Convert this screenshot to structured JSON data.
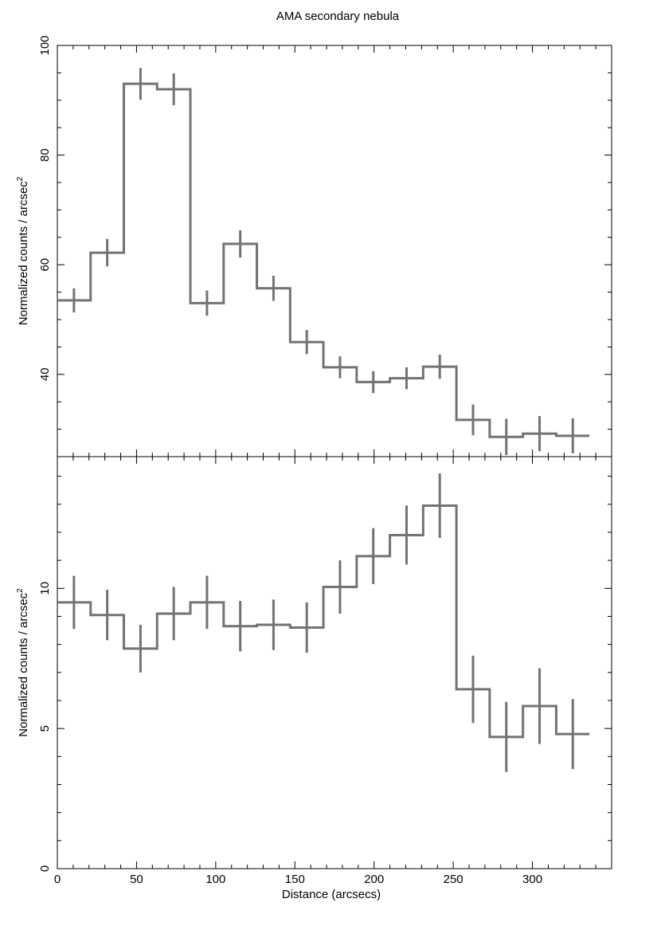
{
  "figure_title": "AMA secondary nebula",
  "chart_data": [
    {
      "type": "line",
      "style": "step-histogram-with-error-bars",
      "title": "AMA secondary nebula",
      "xlabel": "Distance (arcsecs)",
      "ylabel": "Normalized counts / arcsec",
      "ylabel_superscript": "2",
      "xlim": [
        0,
        350
      ],
      "ylim": [
        25,
        100
      ],
      "x_ticks": [],
      "y_ticks": [
        40,
        60,
        80,
        100
      ],
      "x_minor_step": 10,
      "y_minor_step": 5,
      "color": "#737373",
      "bin_edges": [
        0,
        21,
        42,
        63,
        84,
        105,
        126,
        147,
        168,
        189,
        210,
        231,
        252,
        273,
        294,
        315,
        336
      ],
      "x": [
        10.5,
        31.5,
        52.5,
        73.5,
        94.5,
        115.5,
        136.5,
        157.5,
        178.5,
        199.5,
        220.5,
        241.5,
        262.5,
        283.5,
        304.5,
        325.5
      ],
      "values": [
        53.5,
        62.2,
        93.0,
        92.0,
        53.0,
        63.8,
        55.7,
        45.9,
        41.3,
        38.6,
        39.3,
        41.4,
        31.7,
        28.6,
        29.2,
        28.8
      ],
      "errors": [
        2.2,
        2.5,
        2.9,
        2.9,
        2.3,
        2.5,
        2.3,
        2.2,
        2.0,
        2.0,
        2.0,
        2.2,
        2.8,
        3.3,
        3.2,
        3.2
      ]
    },
    {
      "type": "line",
      "style": "step-histogram-with-error-bars",
      "xlabel": "Distance (arcsecs)",
      "ylabel": "Normalized counts / arcsec",
      "ylabel_superscript": "2",
      "xlim": [
        0,
        350
      ],
      "ylim": [
        0,
        14.7
      ],
      "x_ticks": [
        0,
        50,
        100,
        150,
        200,
        250,
        300
      ],
      "y_ticks": [
        0,
        5,
        10
      ],
      "x_minor_step": 10,
      "y_minor_step": 1,
      "color": "#737373",
      "bin_edges": [
        0,
        21,
        42,
        63,
        84,
        105,
        126,
        147,
        168,
        189,
        210,
        231,
        252,
        273,
        294,
        315,
        336
      ],
      "x": [
        10.5,
        31.5,
        52.5,
        73.5,
        94.5,
        115.5,
        136.5,
        157.5,
        178.5,
        199.5,
        220.5,
        241.5,
        262.5,
        283.5,
        304.5,
        325.5
      ],
      "values": [
        9.5,
        9.05,
        7.85,
        9.1,
        9.5,
        8.65,
        8.7,
        8.6,
        10.05,
        11.15,
        11.9,
        12.95,
        6.4,
        4.7,
        5.8,
        4.8
      ],
      "errors": [
        0.95,
        0.9,
        0.85,
        0.95,
        0.95,
        0.9,
        0.9,
        0.9,
        0.95,
        1.0,
        1.05,
        1.15,
        1.2,
        1.25,
        1.35,
        1.25
      ]
    }
  ]
}
